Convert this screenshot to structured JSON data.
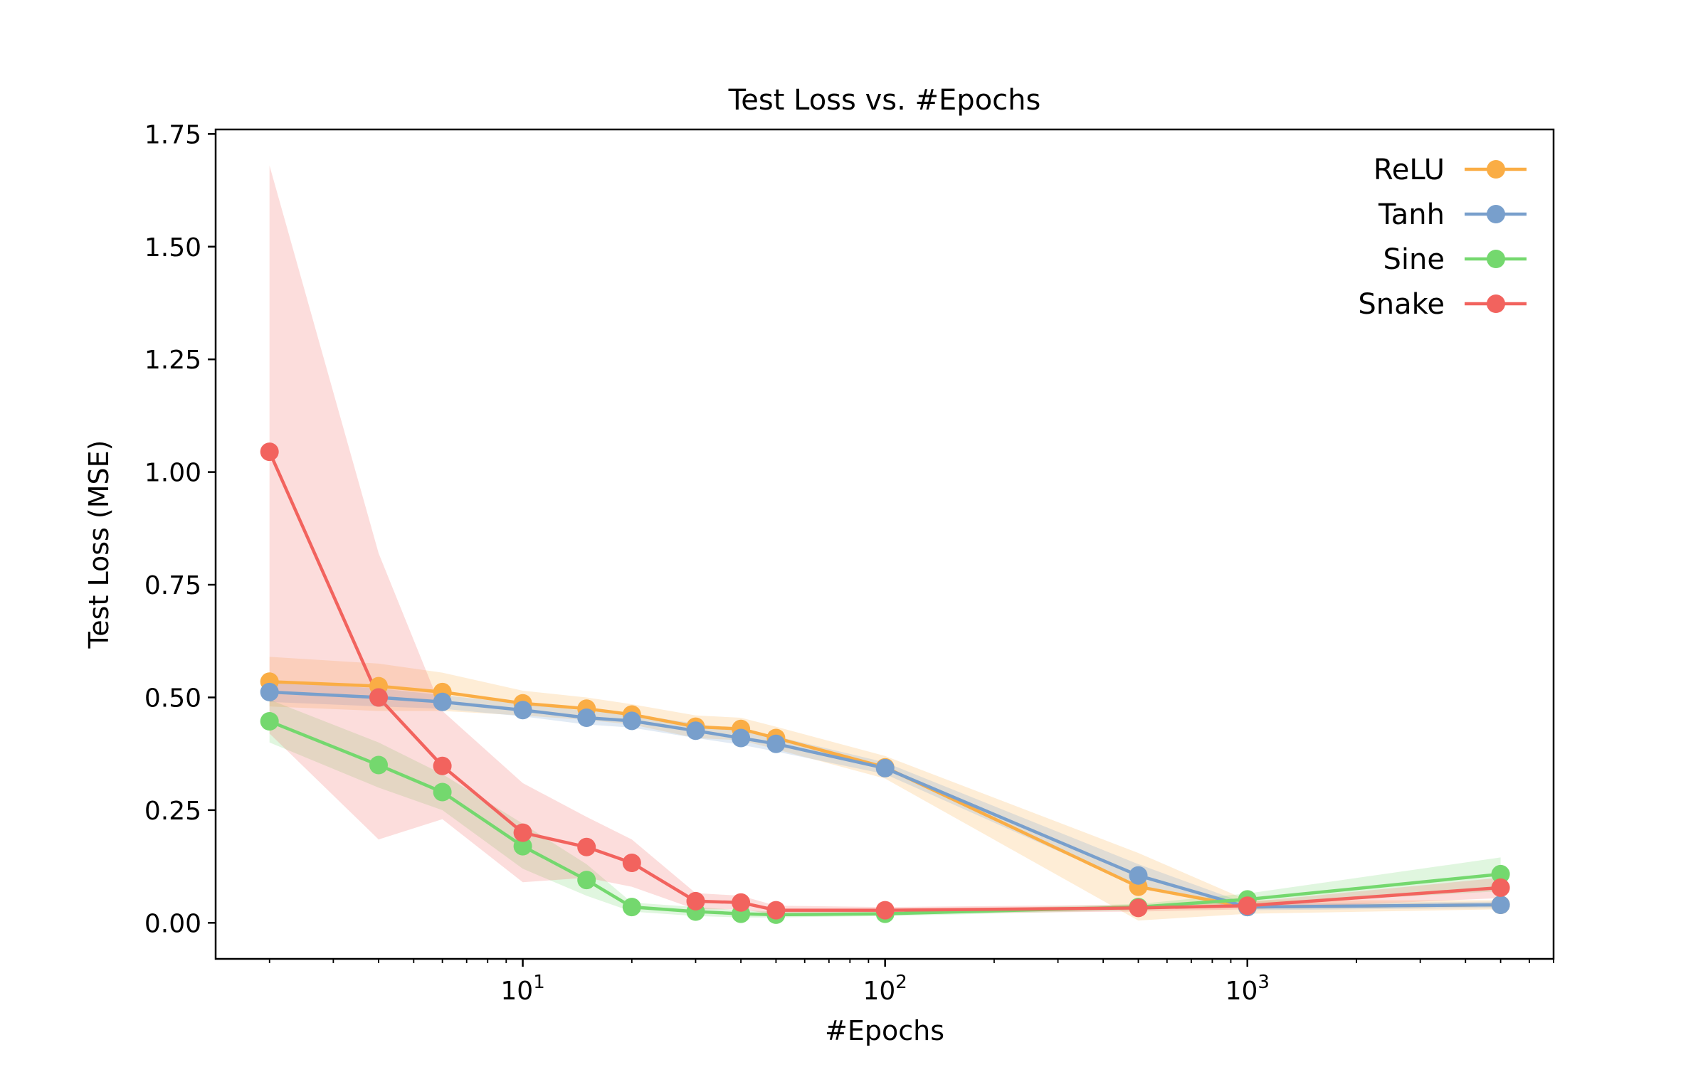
{
  "chart_data": {
    "type": "line",
    "title": "Test Loss vs. #Epochs",
    "xlabel": "#Epochs",
    "ylabel": "Test Loss (MSE)",
    "xscale": "log",
    "xlim": [
      1.42,
      7000
    ],
    "ylim": [
      -0.08,
      1.76
    ],
    "yticks": [
      0.0,
      0.25,
      0.5,
      0.75,
      1.0,
      1.25,
      1.5,
      1.75
    ],
    "ytick_labels": [
      "0.00",
      "0.25",
      "0.50",
      "0.75",
      "1.00",
      "1.25",
      "1.50",
      "1.75"
    ],
    "xticks_major": [
      {
        "value": 10,
        "base": "10",
        "exp": "1"
      },
      {
        "value": 100,
        "base": "10",
        "exp": "2"
      },
      {
        "value": 1000,
        "base": "10",
        "exp": "3"
      }
    ],
    "legend_position": "top-right",
    "x": [
      2,
      4,
      6,
      10,
      15,
      20,
      30,
      40,
      50,
      100,
      500,
      1000,
      5000
    ],
    "series": [
      {
        "name": "ReLU",
        "color": "#FAAD45",
        "values": [
          0.535,
          0.525,
          0.512,
          0.487,
          0.475,
          0.462,
          0.435,
          0.43,
          0.41,
          0.345,
          0.08,
          0.035,
          0.04
        ],
        "lower": [
          0.48,
          0.47,
          0.47,
          0.46,
          0.45,
          0.44,
          0.41,
          0.405,
          0.385,
          0.32,
          0.005,
          0.02,
          0.03
        ],
        "upper": [
          0.59,
          0.575,
          0.555,
          0.515,
          0.5,
          0.485,
          0.46,
          0.455,
          0.435,
          0.37,
          0.155,
          0.05,
          0.05
        ]
      },
      {
        "name": "Tanh",
        "color": "#789FCC",
        "values": [
          0.512,
          0.5,
          0.49,
          0.472,
          0.455,
          0.448,
          0.426,
          0.41,
          0.397,
          0.343,
          0.105,
          0.035,
          0.04
        ],
        "lower": [
          0.49,
          0.48,
          0.475,
          0.458,
          0.44,
          0.433,
          0.41,
          0.395,
          0.38,
          0.33,
          0.08,
          0.028,
          0.033
        ],
        "upper": [
          0.535,
          0.52,
          0.505,
          0.486,
          0.47,
          0.463,
          0.442,
          0.425,
          0.414,
          0.356,
          0.13,
          0.042,
          0.047
        ]
      },
      {
        "name": "Sine",
        "color": "#74D86E",
        "values": [
          0.447,
          0.35,
          0.29,
          0.17,
          0.095,
          0.035,
          0.025,
          0.02,
          0.018,
          0.02,
          0.035,
          0.052,
          0.108
        ],
        "lower": [
          0.4,
          0.3,
          0.25,
          0.12,
          0.06,
          0.025,
          0.015,
          0.012,
          0.012,
          0.015,
          0.028,
          0.04,
          0.07
        ],
        "upper": [
          0.495,
          0.4,
          0.33,
          0.22,
          0.13,
          0.045,
          0.035,
          0.028,
          0.025,
          0.025,
          0.042,
          0.065,
          0.145
        ]
      },
      {
        "name": "Snake",
        "color": "#F2635E",
        "values": [
          1.045,
          0.5,
          0.348,
          0.2,
          0.168,
          0.133,
          0.048,
          0.045,
          0.028,
          0.028,
          0.033,
          0.038,
          0.078
        ],
        "lower": [
          0.42,
          0.185,
          0.23,
          0.09,
          0.1,
          0.08,
          0.03,
          0.03,
          0.018,
          0.02,
          0.025,
          0.03,
          0.055
        ],
        "upper": [
          1.68,
          0.82,
          0.47,
          0.31,
          0.235,
          0.185,
          0.066,
          0.06,
          0.038,
          0.035,
          0.04,
          0.046,
          0.1
        ]
      }
    ]
  }
}
